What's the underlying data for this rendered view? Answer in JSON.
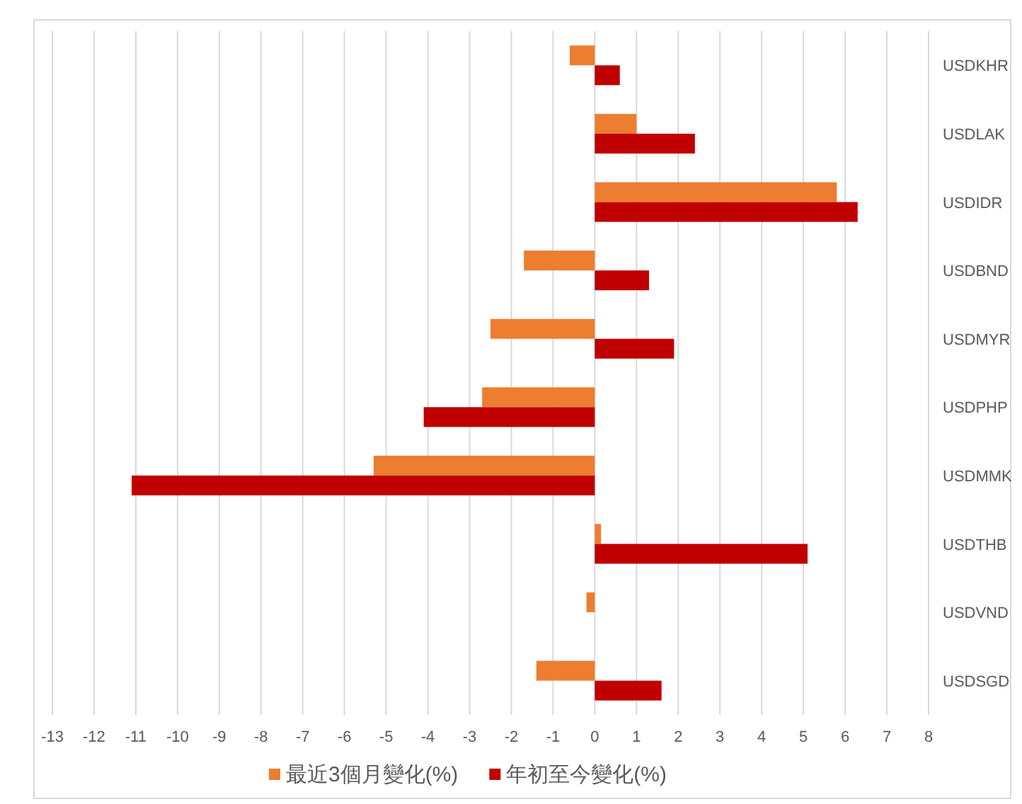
{
  "chart_data": {
    "type": "bar",
    "orientation": "horizontal",
    "categories": [
      "USDKHR",
      "USDLAK",
      "USDIDR",
      "USDBND",
      "USDMYR",
      "USDPHP",
      "USDMMK",
      "USDTHB",
      "USDVND",
      "USDSGD"
    ],
    "series": [
      {
        "name": "最近3個月變化(%)",
        "color": "#ed7d31",
        "values": [
          -0.6,
          1.0,
          5.8,
          -1.7,
          -2.5,
          -2.7,
          -5.3,
          0.15,
          -0.2,
          -1.4
        ]
      },
      {
        "name": "年初至今變化(%)",
        "color": "#c00000",
        "values": [
          0.6,
          2.4,
          6.3,
          1.3,
          1.9,
          -4.1,
          -11.1,
          5.1,
          null,
          1.6
        ]
      }
    ],
    "xlim": [
      -13,
      8
    ],
    "xticks": [
      -13,
      -12,
      -11,
      -10,
      -9,
      -8,
      -7,
      -6,
      -5,
      -4,
      -3,
      -2,
      -1,
      0,
      1,
      2,
      3,
      4,
      5,
      6,
      7,
      8
    ],
    "grid": "x",
    "legend": "bottom"
  }
}
